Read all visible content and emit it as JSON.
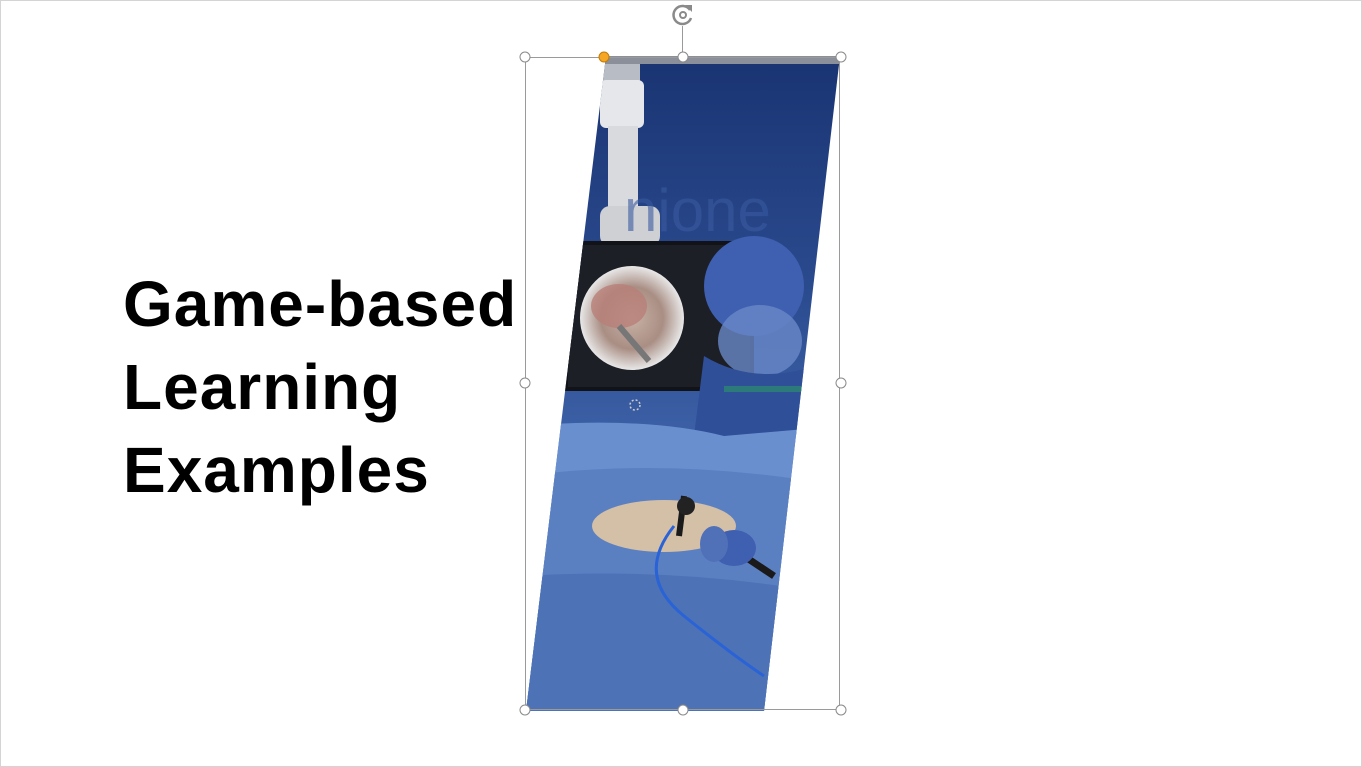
{
  "slide": {
    "title_lines": [
      "Game-based",
      "Learning",
      "Examples"
    ]
  },
  "picture": {
    "description_icon": "surgery-simulation-image",
    "colors": {
      "background_blue": "#23407e",
      "drape_blue": "#5b7fc4",
      "accent_orange": "#f5a623"
    }
  },
  "selection": {
    "handles": [
      "top-left",
      "top-center",
      "top-right",
      "middle-left",
      "middle-right",
      "bottom-left",
      "bottom-center",
      "bottom-right"
    ],
    "adjust_handle": "shape-adjust-handle",
    "rotate_icon": "rotate-icon"
  }
}
